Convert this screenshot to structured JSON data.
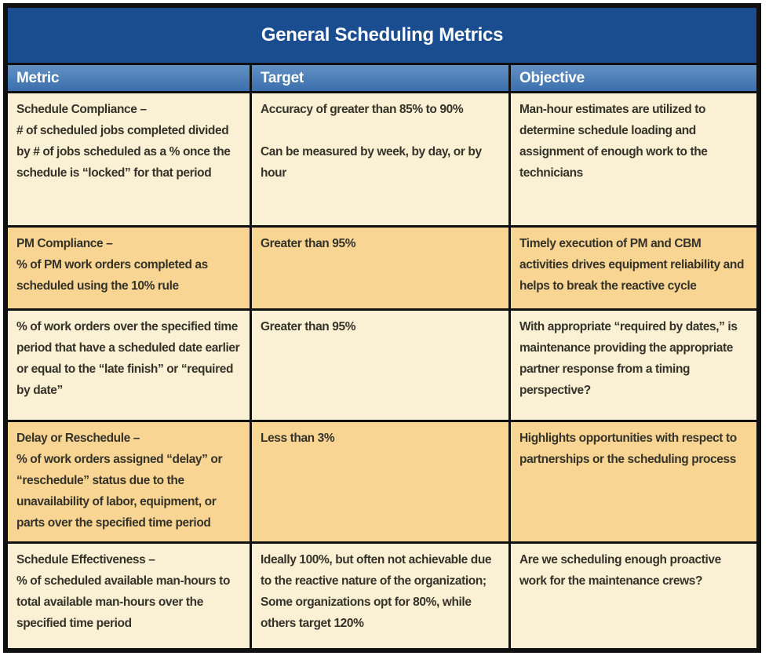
{
  "table": {
    "title": "General Scheduling Metrics",
    "columns": [
      "Metric",
      "Target",
      "Objective"
    ],
    "rows": [
      {
        "metric": "Schedule Compliance –\n# of scheduled jobs completed divided by # of jobs scheduled as a % once the schedule is “locked” for that period",
        "target": "Accuracy of greater than 85% to 90%\n\nCan be measured by week, by day, or by hour",
        "objective": "Man-hour estimates are utilized to determine schedule loading and assignment of enough work to the technicians"
      },
      {
        "metric": "PM Compliance –\n% of PM work orders completed as scheduled using the 10% rule",
        "target": "Greater than 95%",
        "objective": "Timely execution of PM and CBM activities drives equipment reliability and helps to break the reactive cycle"
      },
      {
        "metric": "% of work orders over the specified time period that have a scheduled date earlier or equal to the “late finish” or “required by date”",
        "target": "Greater than 95%",
        "objective": "With appropriate “required by dates,” is maintenance providing the appropriate partner response from a timing perspective?"
      },
      {
        "metric": "Delay or Reschedule –\n% of work orders assigned “delay” or “reschedule” status due to the unavailability of labor, equipment, or parts over the specified time period",
        "target": "Less than 3%",
        "objective": "Highlights opportunities with respect to partnerships or the scheduling process"
      },
      {
        "metric": "Schedule Effectiveness –\n% of scheduled available man-hours to total available man-hours over the specified time period",
        "target": "Ideally 100%, but often not achievable due to the reactive nature of the organization; Some organizations opt for 80%, while others target 120%",
        "objective": "Are we scheduling enough proactive work for the maintenance crews?"
      }
    ]
  },
  "colors": {
    "title_bar_bg": "#1A4D8F",
    "header_bg": "#3B70AD",
    "row_light_bg": "#FAF0D3",
    "row_dark_bg": "#F8D592",
    "border": "#101010",
    "body_text": "#35332A",
    "header_text": "#FFFFFF"
  }
}
